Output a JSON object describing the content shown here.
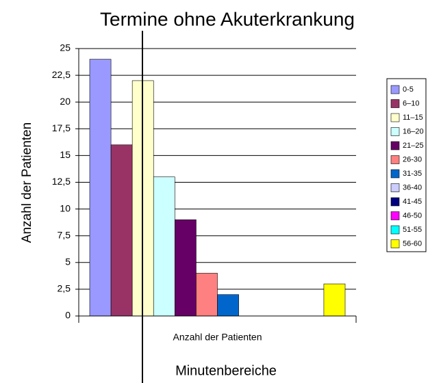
{
  "chart_data": {
    "type": "bar",
    "title": "Termine ohne Akuterkrankung",
    "y_label": "Anzahl der Patienten",
    "x_label": "Minutenbereiche",
    "categories": [
      "Anzahl der Patienten"
    ],
    "series": [
      {
        "name": "0-5",
        "color": "#9999ff",
        "values": [
          24
        ]
      },
      {
        "name": "6–10",
        "color": "#993366",
        "values": [
          16
        ]
      },
      {
        "name": "11–15",
        "color": "#ffffcc",
        "values": [
          22
        ]
      },
      {
        "name": "16–20",
        "color": "#ccffff",
        "values": [
          13
        ]
      },
      {
        "name": "21–25",
        "color": "#660066",
        "values": [
          9
        ]
      },
      {
        "name": "26-30",
        "color": "#ff8080",
        "values": [
          4
        ]
      },
      {
        "name": "31-35",
        "color": "#0066cc",
        "values": [
          2
        ]
      },
      {
        "name": "36-40",
        "color": "#ccccff",
        "values": [
          0
        ]
      },
      {
        "name": "41-45",
        "color": "#000080",
        "values": [
          0
        ]
      },
      {
        "name": "46-50",
        "color": "#ff00ff",
        "values": [
          0
        ]
      },
      {
        "name": "51-55",
        "color": "#00ffff",
        "values": [
          0
        ]
      },
      {
        "name": "56-60",
        "color": "#ffff00",
        "values": [
          3
        ]
      }
    ],
    "ylim": [
      0,
      25
    ],
    "yticks": [
      0,
      {
        "value": 2.5,
        "label": "2,5"
      },
      5,
      {
        "value": 7.5,
        "label": "7,5"
      },
      10,
      {
        "value": 12.5,
        "label": "12,5"
      },
      15,
      {
        "value": 17.5,
        "label": "17,5"
      },
      20,
      {
        "value": 22.5,
        "label": "22,5"
      },
      25
    ],
    "grid": true,
    "legend": "right"
  }
}
